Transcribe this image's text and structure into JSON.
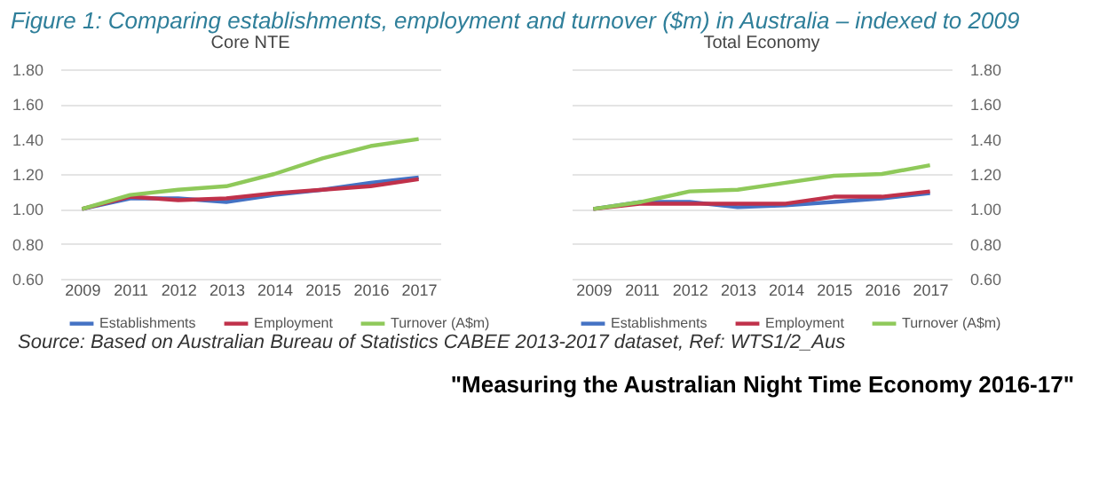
{
  "chart_data": [
    {
      "type": "line",
      "title": "Core NTE",
      "annotations": [
        "Figure 1: Comparing establishments, employment and turnover ($m) in Australia – indexed to 2009"
      ],
      "categories": [
        "2009",
        "2011",
        "2012",
        "2013",
        "2014",
        "2015",
        "2016",
        "2017"
      ],
      "series": [
        {
          "name": "Establishments",
          "color": "#4472c4",
          "values": [
            1.0,
            1.06,
            1.06,
            1.04,
            1.08,
            1.11,
            1.15,
            1.18
          ]
        },
        {
          "name": "Employment",
          "color": "#c0314a",
          "values": [
            1.0,
            1.07,
            1.05,
            1.06,
            1.09,
            1.11,
            1.13,
            1.17
          ]
        },
        {
          "name": "Turnover (A$m)",
          "color": "#8fc95a",
          "values": [
            1.0,
            1.08,
            1.11,
            1.13,
            1.2,
            1.29,
            1.36,
            1.4
          ]
        }
      ],
      "ylim": [
        0.6,
        1.8
      ],
      "yticks": [
        {
          "value": 0.6,
          "label": "0.60"
        },
        {
          "value": 0.8,
          "label": "0.80"
        },
        {
          "value": 1.0,
          "label": "1.00"
        },
        {
          "value": 1.2,
          "label": "1.20"
        },
        {
          "value": 1.4,
          "label": "1.40"
        },
        {
          "value": 1.6,
          "label": "1.60"
        },
        {
          "value": 1.8,
          "label": "1.80"
        }
      ],
      "grid": "y",
      "legend": "bottom",
      "marker": "none"
    },
    {
      "type": "line",
      "title": "Total Economy",
      "annotations": [
        "Source:  Based on Australian Bureau of Statistics CABEE 2013-2017 dataset, Ref: WTS1/2_Aus",
        "\"Measuring the Australian Night Time Economy 2016-17\""
      ],
      "categories": [
        "2009",
        "2011",
        "2012",
        "2013",
        "2014",
        "2015",
        "2016",
        "2017"
      ],
      "series": [
        {
          "name": "Establishments",
          "color": "#4472c4",
          "values": [
            1.0,
            1.04,
            1.04,
            1.01,
            1.02,
            1.04,
            1.06,
            1.09
          ]
        },
        {
          "name": "Employment",
          "color": "#c0314a",
          "values": [
            1.0,
            1.03,
            1.03,
            1.03,
            1.03,
            1.07,
            1.07,
            1.1
          ]
        },
        {
          "name": "Turnover (A$m)",
          "color": "#8fc95a",
          "values": [
            1.0,
            1.04,
            1.1,
            1.11,
            1.15,
            1.19,
            1.2,
            1.25
          ]
        }
      ],
      "ylim": [
        0.6,
        1.8
      ],
      "yticks": [
        {
          "value": 0.6,
          "label": "0.60"
        },
        {
          "value": 0.8,
          "label": "0.80"
        },
        {
          "value": 1.0,
          "label": "1.00"
        },
        {
          "value": 1.2,
          "label": "1.20"
        },
        {
          "value": 1.4,
          "label": "1.40"
        },
        {
          "value": 1.6,
          "label": "1.60"
        },
        {
          "value": 1.8,
          "label": "1.80"
        }
      ],
      "grid": "y",
      "legend": "bottom",
      "marker": "none"
    }
  ]
}
